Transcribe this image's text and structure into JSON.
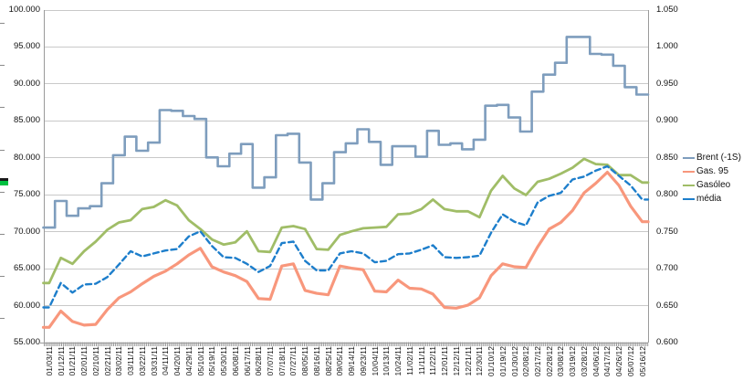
{
  "chart_data": {
    "type": "line",
    "title": "",
    "grid": "horizontal",
    "legend_position": "right",
    "x_labels": [
      "01/03/11",
      "01/12/11",
      "01/21/11",
      "02/01/11",
      "02/10/11",
      "02/21/11",
      "03/02/11",
      "03/11/11",
      "03/22/11",
      "03/31/11",
      "04/11/11",
      "04/20/11",
      "04/29/11",
      "05/10/11",
      "05/19/11",
      "05/30/11",
      "06/08/11",
      "06/17/11",
      "06/28/11",
      "07/07/11",
      "07/18/11",
      "07/27/11",
      "08/05/11",
      "08/16/11",
      "08/25/11",
      "09/05/11",
      "09/14/11",
      "09/23/11",
      "10/04/11",
      "10/13/11",
      "10/24/11",
      "11/02/11",
      "11/11/11",
      "11/22/11",
      "12/01/11",
      "12/12/11",
      "12/21/11",
      "12/30/11",
      "01/10/12",
      "01/19/12",
      "01/30/12",
      "02/08/12",
      "02/17/12",
      "02/28/12",
      "03/08/12",
      "03/19/12",
      "03/28/12",
      "04/06/12",
      "04/17/12",
      "04/26/12",
      "05/07/12",
      "05/16/12"
    ],
    "left_axis": {
      "min": 55,
      "max": 100,
      "step": 5,
      "labels": [
        "100.000",
        "95.000",
        "90.000",
        "85.000",
        "80.000",
        "75.000",
        "70.000",
        "65.000",
        "60.000",
        "55.000"
      ]
    },
    "right_axis": {
      "min": 0.6,
      "max": 1.05,
      "step": 0.05,
      "labels": [
        "1.050",
        "1.000",
        "0.950",
        "0.900",
        "0.850",
        "0.800",
        "0.750",
        "0.700",
        "0.650",
        "0.600"
      ]
    },
    "series": [
      {
        "name": "Brent (-1S)",
        "axis": "left",
        "color": "#7e9dbd",
        "line_style": "step",
        "stroke_width": 2.6,
        "values": [
          70.5,
          74.1,
          72.1,
          73.1,
          73.4,
          76.5,
          80.3,
          82.8,
          80.9,
          82.0,
          86.4,
          86.3,
          85.6,
          85.2,
          80.0,
          78.8,
          80.5,
          81.8,
          75.9,
          77.3,
          83.0,
          83.2,
          79.3,
          74.3,
          76.5,
          80.7,
          81.9,
          83.8,
          82.1,
          79.0,
          81.5,
          81.5,
          80.1,
          83.6,
          81.7,
          81.9,
          81.1,
          82.4,
          87.0,
          87.1,
          85.4,
          83.5,
          88.9,
          91.2,
          92.8,
          96.3,
          96.3,
          94.0,
          93.9,
          92.4,
          89.5,
          88.5
        ]
      },
      {
        "name": "Gas. 95",
        "axis": "right",
        "color": "#f8977c",
        "line_style": "solid",
        "stroke_width": 3.2,
        "values": [
          0.62,
          0.642,
          0.628,
          0.623,
          0.624,
          0.644,
          0.66,
          0.668,
          0.679,
          0.689,
          0.696,
          0.706,
          0.718,
          0.727,
          0.702,
          0.695,
          0.69,
          0.682,
          0.659,
          0.658,
          0.703,
          0.706,
          0.67,
          0.666,
          0.664,
          0.703,
          0.7,
          0.698,
          0.669,
          0.668,
          0.684,
          0.673,
          0.672,
          0.665,
          0.647,
          0.646,
          0.65,
          0.66,
          0.69,
          0.706,
          0.702,
          0.701,
          0.729,
          0.753,
          0.762,
          0.778,
          0.802,
          0.815,
          0.83,
          0.812,
          0.784,
          0.763
        ]
      },
      {
        "name": "Gasóleo",
        "axis": "right",
        "color": "#a0bd67",
        "line_style": "solid",
        "stroke_width": 2.8,
        "values": [
          0.68,
          0.714,
          0.706,
          0.723,
          0.736,
          0.752,
          0.762,
          0.765,
          0.78,
          0.783,
          0.792,
          0.785,
          0.765,
          0.753,
          0.739,
          0.732,
          0.735,
          0.75,
          0.723,
          0.722,
          0.755,
          0.757,
          0.753,
          0.726,
          0.725,
          0.745,
          0.75,
          0.754,
          0.755,
          0.756,
          0.773,
          0.774,
          0.78,
          0.793,
          0.78,
          0.777,
          0.777,
          0.769,
          0.805,
          0.825,
          0.808,
          0.799,
          0.817,
          0.821,
          0.828,
          0.836,
          0.848,
          0.841,
          0.84,
          0.826,
          0.826,
          0.816
        ]
      },
      {
        "name": "média",
        "axis": "right",
        "color": "#1d7ecb",
        "line_style": "dashed",
        "stroke_width": 2.4,
        "values": [
          0.647,
          0.68,
          0.667,
          0.678,
          0.679,
          0.688,
          0.705,
          0.723,
          0.716,
          0.72,
          0.724,
          0.726,
          0.743,
          0.75,
          0.73,
          0.715,
          0.714,
          0.706,
          0.695,
          0.703,
          0.734,
          0.736,
          0.71,
          0.697,
          0.697,
          0.72,
          0.723,
          0.72,
          0.708,
          0.71,
          0.719,
          0.72,
          0.725,
          0.731,
          0.715,
          0.714,
          0.715,
          0.717,
          0.748,
          0.773,
          0.763,
          0.758,
          0.789,
          0.798,
          0.802,
          0.82,
          0.824,
          0.832,
          0.838,
          0.825,
          0.812,
          0.793
        ]
      }
    ]
  },
  "artifact": {
    "description": "small green paste artifact at left edge"
  }
}
